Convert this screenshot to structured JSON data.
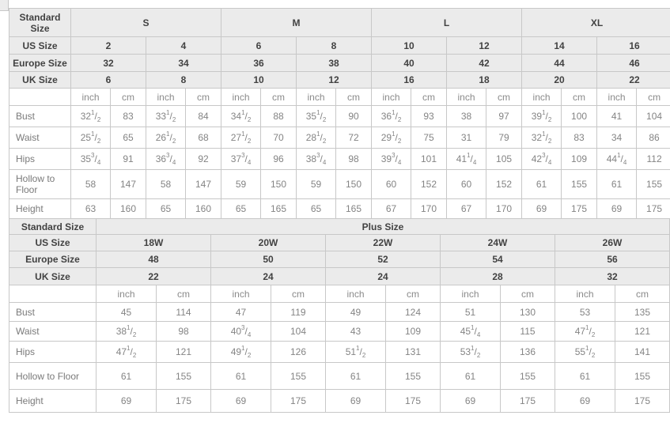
{
  "standard": {
    "corner": "Standard Size",
    "size_headers": [
      "S",
      "M",
      "L",
      "XL"
    ],
    "units": [
      "inch",
      "cm"
    ],
    "us": {
      "label": "US Size",
      "values": [
        "2",
        "4",
        "6",
        "8",
        "10",
        "12",
        "14",
        "16"
      ]
    },
    "europe": {
      "label": "Europe Size",
      "values": [
        "32",
        "34",
        "36",
        "38",
        "40",
        "42",
        "44",
        "46"
      ]
    },
    "uk": {
      "label": "UK Size",
      "values": [
        "6",
        "8",
        "10",
        "12",
        "16",
        "18",
        "20",
        "22"
      ]
    },
    "bust": {
      "label": "Bust",
      "cells": [
        "32 1/2",
        "83",
        "33 1/2",
        "84",
        "34 1/2",
        "88",
        "35 1/2",
        "90",
        "36 1/2",
        "93",
        "38",
        "97",
        "39 1/2",
        "100",
        "41",
        "104"
      ]
    },
    "waist": {
      "label": "Waist",
      "cells": [
        "25 1/2",
        "65",
        "26 1/2",
        "68",
        "27 1/2",
        "70",
        "28 1/2",
        "72",
        "29 1/2",
        "75",
        "31",
        "79",
        "32 1/2",
        "83",
        "34",
        "86"
      ]
    },
    "hips": {
      "label": "Hips",
      "cells": [
        "35 3/4",
        "91",
        "36 3/4",
        "92",
        "37 3/4",
        "96",
        "38 3/4",
        "98",
        "39 3/4",
        "101",
        "41 1/4",
        "105",
        "42 3/4",
        "109",
        "44 1/4",
        "112"
      ]
    },
    "hollow": {
      "label": "Hollow to Floor",
      "cells": [
        "58",
        "147",
        "58",
        "147",
        "59",
        "150",
        "59",
        "150",
        "60",
        "152",
        "60",
        "152",
        "61",
        "155",
        "61",
        "155"
      ]
    },
    "height": {
      "label": "Height",
      "cells": [
        "63",
        "160",
        "65",
        "160",
        "65",
        "165",
        "65",
        "165",
        "67",
        "170",
        "67",
        "170",
        "69",
        "175",
        "69",
        "175"
      ]
    }
  },
  "plus": {
    "corner": "Standard Size",
    "header": "Plus Size",
    "units": [
      "inch",
      "cm"
    ],
    "us": {
      "label": "US Size",
      "values": [
        "18W",
        "20W",
        "22W",
        "24W",
        "26W"
      ]
    },
    "europe": {
      "label": "Europe Size",
      "values": [
        "48",
        "50",
        "52",
        "54",
        "56"
      ]
    },
    "uk": {
      "label": "UK Size",
      "values": [
        "22",
        "24",
        "24",
        "28",
        "32"
      ]
    },
    "bust": {
      "label": "Bust",
      "cells": [
        "45",
        "114",
        "47",
        "119",
        "49",
        "124",
        "51",
        "130",
        "53",
        "135"
      ]
    },
    "waist": {
      "label": "Waist",
      "cells": [
        "38 1/2",
        "98",
        "40 3/4",
        "104",
        "43",
        "109",
        "45 1/4",
        "115",
        "47 1/2",
        "121"
      ]
    },
    "hips": {
      "label": "Hips",
      "cells": [
        "47 1/2",
        "121",
        "49 1/2",
        "126",
        "51 1/2",
        "131",
        "53 1/2",
        "136",
        "55 1/2",
        "141"
      ]
    },
    "hollow": {
      "label": "Hollow to Floor",
      "cells": [
        "61",
        "155",
        "61",
        "155",
        "61",
        "155",
        "61",
        "155",
        "61",
        "155"
      ]
    },
    "height": {
      "label": "Height",
      "cells": [
        "69",
        "175",
        "69",
        "175",
        "69",
        "175",
        "69",
        "175",
        "69",
        "175"
      ]
    }
  }
}
